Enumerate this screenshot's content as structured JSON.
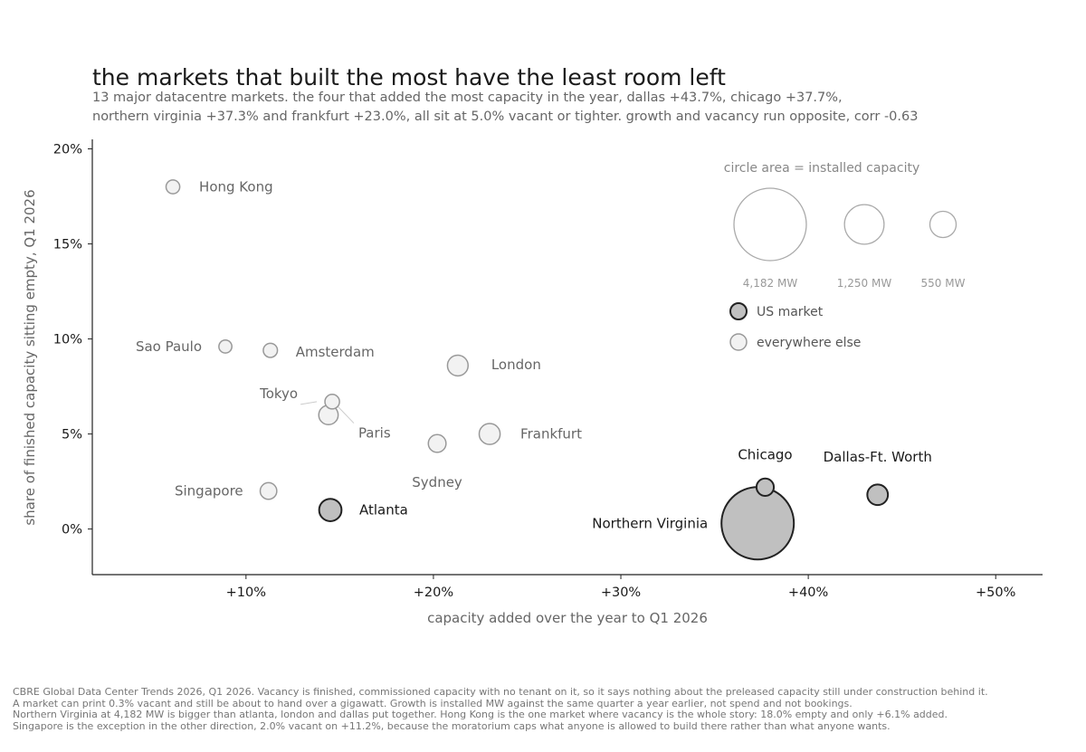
{
  "chart_data": {
    "type": "scatter",
    "title": "the markets that built the most have the least room left",
    "subtitle": [
      "13 major datacentre markets. the four that added the most capacity in the year, dallas +43.7%, chicago +37.7%,",
      "northern virginia +37.3% and frankfurt +23.0%, all sit at 5.0% vacant or tighter. growth and vacancy run opposite, corr -0.63"
    ],
    "xlabel": "capacity added over the year to Q1 2026",
    "ylabel": "share of finished capacity sitting empty, Q1 2026",
    "xlim": [
      1.8,
      52.5
    ],
    "ylim": [
      -2.4,
      20.5
    ],
    "xticks": [
      10,
      20,
      30,
      40,
      50
    ],
    "xtick_labels": [
      "+10%",
      "+20%",
      "+30%",
      "+40%",
      "+50%"
    ],
    "yticks": [
      0,
      5,
      10,
      15,
      20
    ],
    "ytick_labels": [
      "0%",
      "5%",
      "10%",
      "15%",
      "20%"
    ],
    "grid": false,
    "points": [
      {
        "name": "Hong Kong",
        "x": 6.1,
        "y": 18.0,
        "mw": 150,
        "us": false
      },
      {
        "name": "Sao Paulo",
        "x": 8.9,
        "y": 9.6,
        "mw": 135,
        "us": false
      },
      {
        "name": "Amsterdam",
        "x": 11.3,
        "y": 9.4,
        "mw": 160,
        "us": false
      },
      {
        "name": "London",
        "x": 21.3,
        "y": 8.6,
        "mw": 340,
        "us": false
      },
      {
        "name": "Tokyo",
        "x": 14.6,
        "y": 6.7,
        "mw": 170,
        "us": false
      },
      {
        "name": "Paris",
        "x": 14.4,
        "y": 6.0,
        "mw": 300,
        "us": false
      },
      {
        "name": "Frankfurt",
        "x": 23.0,
        "y": 5.0,
        "mw": 350,
        "us": false
      },
      {
        "name": "Sydney",
        "x": 20.2,
        "y": 4.5,
        "mw": 250,
        "us": false
      },
      {
        "name": "Singapore",
        "x": 11.2,
        "y": 2.0,
        "mw": 220,
        "us": false
      },
      {
        "name": "Atlanta",
        "x": 14.5,
        "y": 1.0,
        "mw": 400,
        "us": true
      },
      {
        "name": "Chicago",
        "x": 37.7,
        "y": 2.2,
        "mw": 240,
        "us": true
      },
      {
        "name": "Dallas-Ft. Worth",
        "x": 43.7,
        "y": 1.8,
        "mw": 340,
        "us": true
      },
      {
        "name": "Northern Virginia",
        "x": 37.3,
        "y": 0.3,
        "mw": 4182,
        "us": true
      }
    ],
    "legend": {
      "title": "circle area = installed capacity",
      "sizes": [
        {
          "mw": 4182,
          "label": "4,182 MW"
        },
        {
          "mw": 1250,
          "label": "1,250 MW"
        },
        {
          "mw": 550,
          "label": "550 MW"
        }
      ],
      "categories": [
        {
          "label": "US market",
          "us": true
        },
        {
          "label": "everywhere else",
          "us": false
        }
      ],
      "placement": "top-right"
    },
    "colors": {
      "us_fill": "#c0c0c0",
      "us_stroke": "#222222",
      "other_fill": "#f2f2f2",
      "other_stroke": "#999999",
      "legend_stroke": "#aaaaaa"
    }
  },
  "footnote": [
    "CBRE Global Data Center Trends 2026, Q1 2026. Vacancy is finished, commissioned capacity with no tenant on it, so it says nothing about the preleased capacity still under construction behind it.",
    "A market can print 0.3% vacant and still be about to hand over a gigawatt. Growth is installed MW against the same quarter a year earlier, not spend and not bookings.",
    "Northern Virginia at 4,182 MW is bigger than atlanta, london and dallas put together. Hong Kong is the one market where vacancy is the whole story: 18.0% empty and only +6.1% added.",
    "Singapore is the exception in the other direction, 2.0% vacant on +11.2%, because the moratorium caps what anyone is allowed to build there rather than what anyone wants."
  ]
}
